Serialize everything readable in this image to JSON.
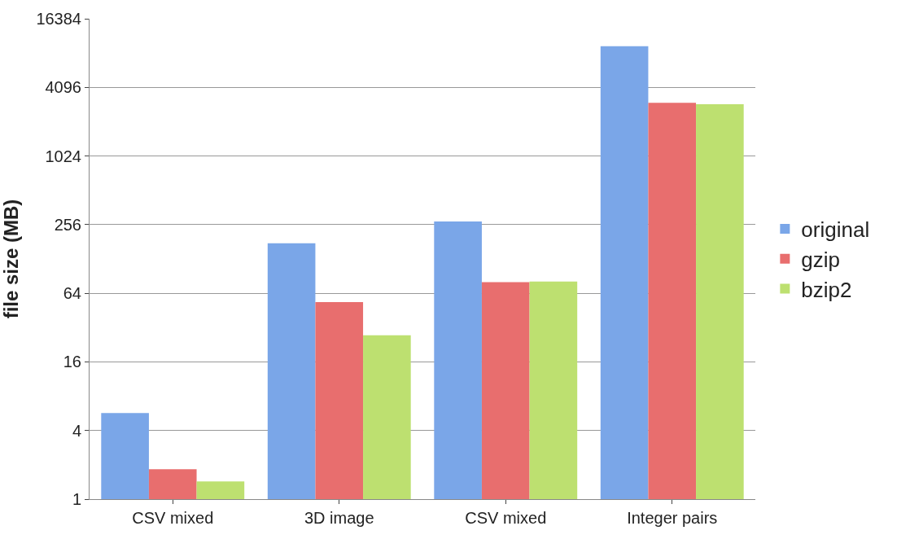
{
  "chart_data": {
    "type": "bar",
    "ylabel": "file size (MB)",
    "log": true,
    "categories": [
      "CSV mixed",
      "3D image",
      "CSV mixed",
      "Integer pairs"
    ],
    "series": [
      {
        "name": "original",
        "color": "#7aa6e8",
        "values": [
          5.7,
          176,
          273,
          9410
        ]
      },
      {
        "name": "gzip",
        "color": "#e86e6e",
        "values": [
          1.83,
          53.5,
          80,
          3000
        ]
      },
      {
        "name": "bzip2",
        "color": "#bde070",
        "values": [
          1.43,
          27.4,
          81,
          2910
        ]
      }
    ],
    "ylim": [
      1,
      16384
    ],
    "yticks": [
      1,
      4,
      16,
      64,
      256,
      1024,
      4096,
      16384
    ],
    "grid": "y",
    "legend": "right"
  }
}
